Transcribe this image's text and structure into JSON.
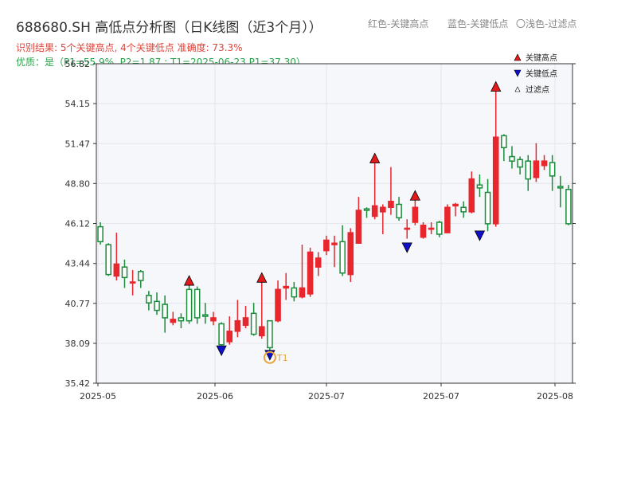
{
  "header": {
    "title": "688680.SH 高低点分析图（日K线图（近3个月））",
    "result_line": "识别结果: 5个关键高点, 4个关键低点  准确度: 73.3%",
    "quality_line": "优质：是（P1=55.9%, P2=1.87 ; T1=2025-06-23 P1=37.30）",
    "legend_red": "红色-关键高点",
    "legend_blue": "蓝色-关键低点",
    "legend_light": "〇浅色-过滤点"
  },
  "colors": {
    "up": "#e8262d",
    "down": "#1a8c3a",
    "high_marker": "#e31a1c",
    "low_marker": "#1010cc",
    "filter_marker": "#e8a33a"
  },
  "chart_data": {
    "type": "candlestick",
    "ylim": [
      35.42,
      56.82
    ],
    "yticks": [
      35.42,
      38.09,
      40.77,
      43.44,
      46.12,
      48.8,
      51.47,
      54.15,
      56.82
    ],
    "xticks": [
      "2025-05",
      "2025-06",
      "2025-07",
      "2025-07",
      "2025-08"
    ],
    "legend": {
      "position": "top-right",
      "items": [
        "关键高点",
        "关键低点",
        "过滤点"
      ]
    },
    "candles": [
      [
        45.9,
        44.9,
        46.2,
        44.7
      ],
      [
        44.7,
        42.7,
        44.8,
        42.6
      ],
      [
        42.6,
        43.4,
        45.5,
        42.3
      ],
      [
        43.2,
        42.5,
        43.7,
        41.8
      ],
      [
        42.2,
        42.2,
        43.0,
        41.3
      ],
      [
        42.9,
        42.3,
        43.0,
        41.8
      ],
      [
        41.3,
        40.8,
        41.6,
        40.3
      ],
      [
        40.9,
        40.3,
        41.5,
        40.0
      ],
      [
        40.7,
        39.8,
        41.3,
        38.8
      ],
      [
        39.5,
        39.7,
        40.2,
        39.3
      ],
      [
        39.8,
        39.6,
        40.1,
        39.1
      ],
      [
        41.7,
        39.6,
        42.2,
        39.4
      ],
      [
        41.7,
        39.8,
        41.9,
        39.4
      ],
      [
        40.0,
        39.9,
        40.8,
        39.4
      ],
      [
        39.6,
        39.8,
        40.2,
        39.3
      ],
      [
        39.4,
        38.0,
        39.5,
        37.9
      ],
      [
        38.2,
        38.9,
        39.9,
        38.0
      ],
      [
        38.9,
        39.6,
        41.0,
        38.5
      ],
      [
        39.3,
        39.8,
        40.6,
        39.1
      ],
      [
        40.1,
        38.7,
        40.8,
        38.6
      ],
      [
        38.6,
        39.2,
        42.3,
        38.4
      ],
      [
        39.6,
        37.8,
        39.6,
        37.3
      ],
      [
        39.6,
        41.7,
        42.3,
        39.5
      ],
      [
        41.8,
        41.9,
        42.8,
        41.0
      ],
      [
        41.8,
        41.2,
        42.2,
        40.9
      ],
      [
        41.2,
        41.8,
        44.7,
        41.1
      ],
      [
        41.4,
        44.2,
        44.5,
        41.2
      ],
      [
        43.2,
        43.8,
        44.2,
        42.6
      ],
      [
        44.3,
        45.0,
        45.3,
        44.0
      ],
      [
        44.7,
        44.8,
        45.3,
        43.2
      ],
      [
        44.9,
        42.8,
        46.0,
        42.6
      ],
      [
        42.7,
        45.5,
        45.8,
        42.2
      ],
      [
        44.8,
        47.0,
        47.9,
        44.9
      ],
      [
        47.1,
        47.0,
        47.2,
        46.5
      ],
      [
        46.6,
        47.3,
        50.2,
        46.4
      ],
      [
        46.9,
        47.2,
        47.4,
        45.4
      ],
      [
        47.2,
        47.6,
        49.9,
        46.7
      ],
      [
        47.4,
        46.5,
        47.9,
        46.3
      ],
      [
        45.8,
        45.8,
        46.4,
        45.1
      ],
      [
        46.2,
        47.2,
        47.8,
        46.0
      ],
      [
        45.2,
        46.0,
        46.2,
        45.1
      ],
      [
        45.8,
        45.8,
        46.2,
        45.4
      ],
      [
        46.2,
        45.4,
        46.3,
        45.2
      ],
      [
        45.5,
        47.2,
        47.4,
        45.5
      ],
      [
        47.3,
        47.4,
        47.5,
        46.6
      ],
      [
        47.2,
        46.9,
        47.6,
        46.5
      ],
      [
        46.9,
        49.1,
        49.6,
        46.8
      ],
      [
        48.7,
        48.5,
        49.4,
        47.9
      ],
      [
        48.2,
        46.1,
        49.1,
        45.6
      ],
      [
        46.1,
        51.9,
        55.6,
        45.9
      ],
      [
        52.0,
        51.2,
        52.1,
        50.3
      ],
      [
        50.6,
        50.3,
        51.3,
        49.8
      ],
      [
        50.4,
        49.9,
        50.6,
        49.4
      ],
      [
        50.3,
        49.1,
        50.7,
        48.3
      ],
      [
        49.2,
        50.3,
        51.5,
        48.9
      ],
      [
        50.0,
        50.3,
        50.7,
        49.7
      ],
      [
        50.2,
        49.3,
        50.7,
        48.3
      ],
      [
        48.6,
        48.5,
        49.3,
        47.2
      ],
      [
        48.4,
        46.1,
        48.7,
        46.0
      ]
    ],
    "key_highs": [
      {
        "index": 11,
        "price": 42.3
      },
      {
        "index": 20,
        "price": 42.5
      },
      {
        "index": 34,
        "price": 50.5
      },
      {
        "index": 39,
        "price": 48.0
      },
      {
        "index": 49,
        "price": 55.3
      }
    ],
    "key_lows": [
      {
        "index": 15,
        "price": 37.6
      },
      {
        "index": 21,
        "price": 37.3
      },
      {
        "index": 38,
        "price": 44.5
      },
      {
        "index": 47,
        "price": 45.3
      }
    ],
    "filter_points": [
      {
        "index": 21,
        "price": 37.3,
        "label": "T1"
      }
    ]
  }
}
